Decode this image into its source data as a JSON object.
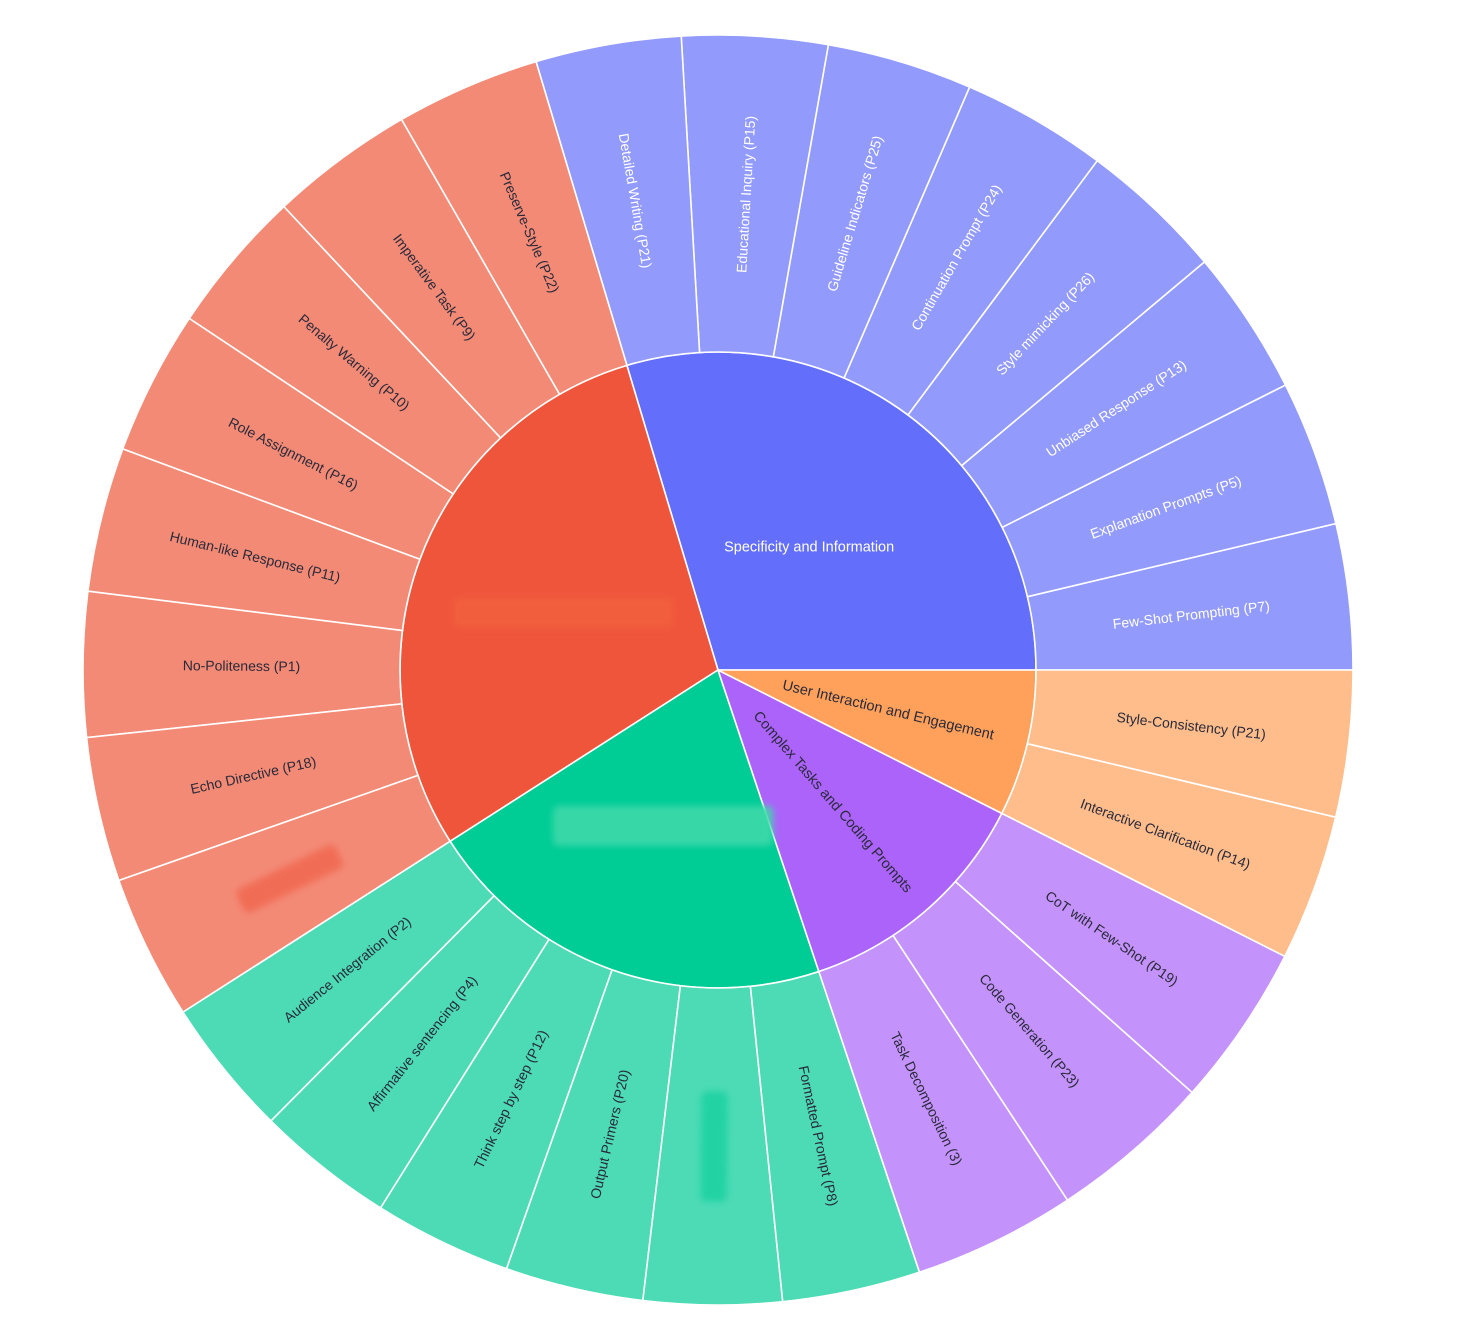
{
  "chart_data": {
    "type": "sunburst",
    "title": "",
    "colors": {
      "red_inner": "#EF553B",
      "red_outer": "#F38A76",
      "blue_inner": "#636EFA",
      "blue_outer": "#929AFB",
      "green_inner": "#00CC96",
      "green_outer": "#4CDBB5",
      "purple_inner": "#AB63FA",
      "purple_outer": "#C492FB",
      "orange_inner": "#FFA15A",
      "orange_outer": "#FFBD8C",
      "label_light": "#ffffff",
      "label_dark": "#2a2a3a"
    },
    "categories": [
      {
        "name": "Specificity and Information",
        "label_visible": true,
        "color_key": "blue",
        "children": [
          "Few-Shot Prompting (P7)",
          "Explanation Prompts (P5)",
          "Unbiased Response (P13)",
          "Style mimicking (P26)",
          "Continuation Prompt (P24)",
          "Guideline Indicators (P25)",
          "Educational Inquiry (P15)",
          "Detailed Writing (P21)"
        ]
      },
      {
        "name": "",
        "label_visible": false,
        "color_key": "red",
        "children": [
          "Preserve-Style (P22)",
          "Imperative Task (P9)",
          "Penalty Warning (P10)",
          "Role Assignment (P16)",
          "Human-like Response (P11)",
          "No-Politeness (P1)",
          "Echo Directive (P18)",
          ""
        ]
      },
      {
        "name": "",
        "label_visible": false,
        "color_key": "green",
        "children": [
          "Audience Integration (P2)",
          "Affirmative sentencing (P4)",
          "Think step by step (P12)",
          "Output Primers (P20)",
          "",
          "Formatted Prompt (P8)"
        ]
      },
      {
        "name": "Complex Tasks and Coding Prompts",
        "label_visible": true,
        "color_key": "purple",
        "children": [
          "Task Decomposition (3)",
          "Code Generation (P23)",
          "CoT with Few-Shot (P19)"
        ]
      },
      {
        "name": "User Interaction and Engagement",
        "label_visible": true,
        "color_key": "orange",
        "children": [
          "Interactive Clarification (P14)",
          "Style-Consistency (P21)"
        ]
      }
    ],
    "values": [
      8,
      8,
      6,
      3,
      2
    ]
  }
}
